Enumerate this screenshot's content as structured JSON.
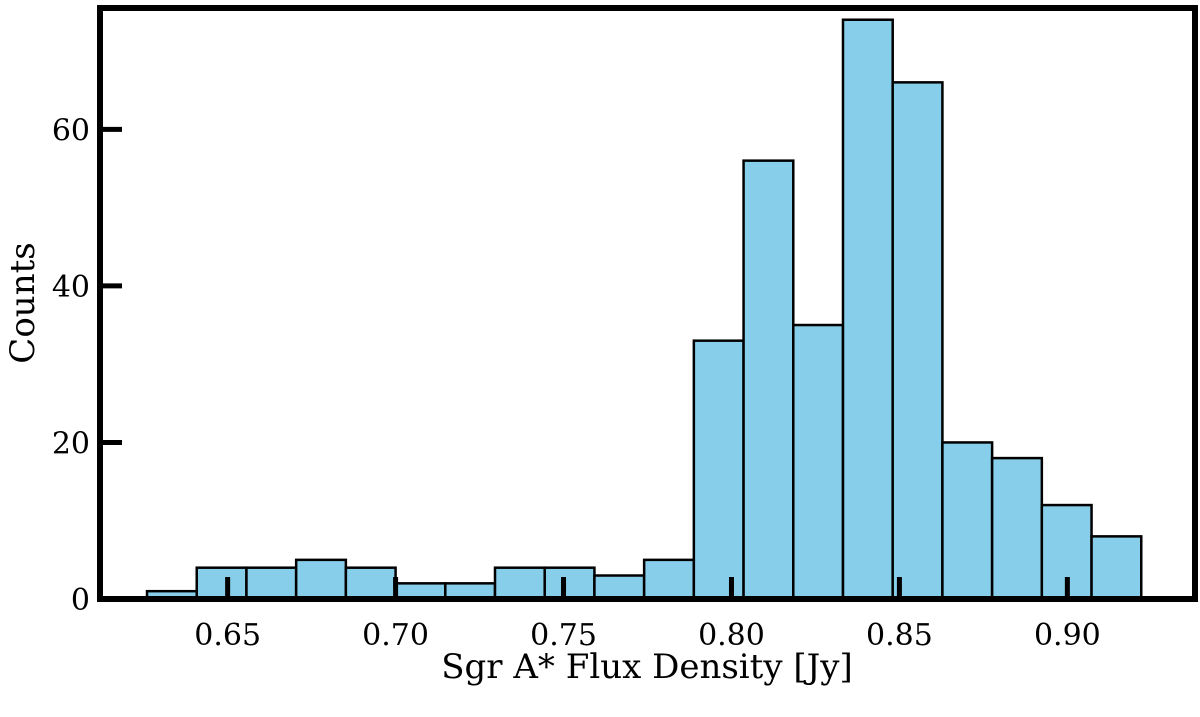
{
  "chart_data": {
    "type": "bar",
    "title": "",
    "xlabel": "Sgr A* Flux Density [Jy]",
    "ylabel": "Counts",
    "xlim": [
      0.612,
      0.938
    ],
    "ylim": [
      0,
      75.5
    ],
    "bin_edges": [
      0.626,
      0.6408,
      0.6556,
      0.6704,
      0.6852,
      0.7,
      0.7148,
      0.7296,
      0.7444,
      0.7592,
      0.774,
      0.7888,
      0.8036,
      0.8184,
      0.8332,
      0.848,
      0.8628,
      0.8776,
      0.8924,
      0.9072,
      0.922
    ],
    "counts": [
      1,
      4,
      4,
      5,
      4,
      2,
      2,
      4,
      4,
      3,
      5,
      33,
      56,
      35,
      74,
      66,
      20,
      18,
      12,
      8
    ],
    "x_ticks": [
      0.65,
      0.7,
      0.75,
      0.8,
      0.85,
      0.9
    ],
    "x_tick_labels": [
      "0.65",
      "0.70",
      "0.75",
      "0.80",
      "0.85",
      "0.90"
    ],
    "y_ticks": [
      0,
      20,
      40,
      60
    ],
    "y_tick_labels": [
      "0",
      "20",
      "40",
      "60"
    ],
    "bar_color": "#87ceeb",
    "edge_color": "#000000",
    "grid": false,
    "legend": "none"
  }
}
